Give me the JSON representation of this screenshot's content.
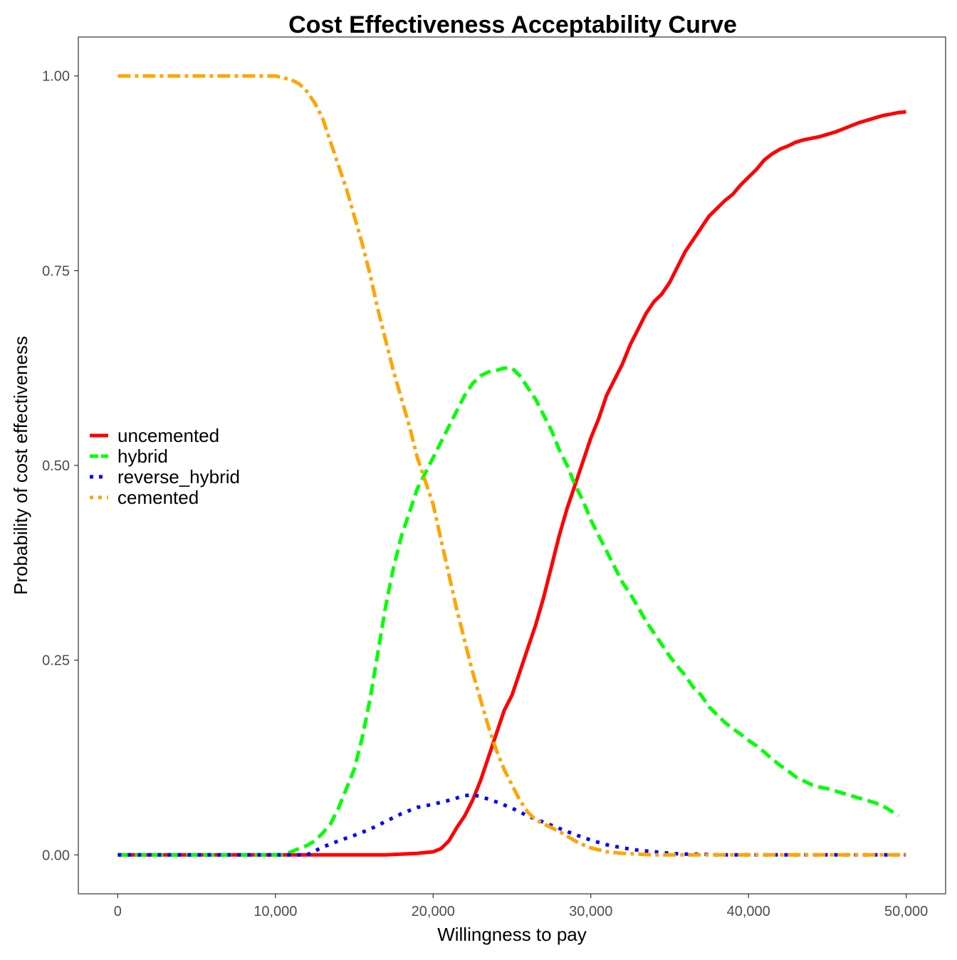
{
  "chart_data": {
    "type": "line",
    "title": "Cost Effectiveness Acceptability Curve",
    "xlabel": "Willingness to pay",
    "ylabel": "Probability of cost effectiveness",
    "xlim": [
      -2500,
      52500
    ],
    "ylim": [
      -0.05,
      1.05
    ],
    "x_ticks": [
      0,
      10000,
      20000,
      30000,
      40000,
      50000
    ],
    "x_tick_labels": [
      "0",
      "10,000",
      "20,000",
      "30,000",
      "40,000",
      "50,000"
    ],
    "y_ticks": [
      0,
      0.25,
      0.5,
      0.75,
      1.0
    ],
    "y_tick_labels": [
      "0.00",
      "0.25",
      "0.50",
      "0.75",
      "1.00"
    ],
    "grid": false,
    "legend_position": "left-middle",
    "series": [
      {
        "name": "uncemented",
        "color": "#ff0000",
        "line_style": "solid",
        "x": [
          0,
          10000,
          17000,
          19000,
          20000,
          20500,
          21000,
          21500,
          22000,
          22500,
          23000,
          23500,
          24000,
          24500,
          25000,
          25500,
          26000,
          26500,
          27000,
          27500,
          28000,
          28500,
          29000,
          29500,
          30000,
          30500,
          31000,
          31500,
          32000,
          32500,
          33000,
          33500,
          34000,
          34500,
          35000,
          35500,
          36000,
          36500,
          37000,
          37500,
          38000,
          38500,
          39000,
          39500,
          40000,
          40500,
          41000,
          41500,
          42000,
          42500,
          43000,
          43500,
          44000,
          44500,
          45000,
          45500,
          46000,
          46500,
          47000,
          47500,
          48000,
          48500,
          49000,
          49500,
          50000
        ],
        "y": [
          0,
          0,
          0,
          0.002,
          0.004,
          0.008,
          0.018,
          0.035,
          0.05,
          0.07,
          0.095,
          0.125,
          0.155,
          0.185,
          0.205,
          0.235,
          0.265,
          0.295,
          0.33,
          0.37,
          0.41,
          0.445,
          0.475,
          0.505,
          0.535,
          0.56,
          0.59,
          0.61,
          0.63,
          0.655,
          0.675,
          0.695,
          0.71,
          0.72,
          0.735,
          0.755,
          0.775,
          0.79,
          0.805,
          0.82,
          0.83,
          0.84,
          0.848,
          0.86,
          0.87,
          0.88,
          0.892,
          0.9,
          0.906,
          0.91,
          0.915,
          0.918,
          0.92,
          0.922,
          0.925,
          0.928,
          0.932,
          0.936,
          0.94,
          0.943,
          0.946,
          0.949,
          0.951,
          0.953,
          0.954
        ]
      },
      {
        "name": "hybrid",
        "color": "#00ff00",
        "line_style": "dashed",
        "x": [
          0,
          10500,
          11000,
          11500,
          12000,
          12500,
          13000,
          13500,
          14000,
          14500,
          15000,
          15500,
          16000,
          16500,
          17000,
          17500,
          18000,
          18500,
          19000,
          19500,
          20000,
          20500,
          21000,
          21500,
          22000,
          22500,
          23000,
          23500,
          24000,
          24500,
          25000,
          25500,
          26000,
          26500,
          27000,
          27500,
          28000,
          28500,
          29000,
          29500,
          30000,
          30500,
          31000,
          31500,
          32000,
          32500,
          33000,
          33500,
          34000,
          34500,
          35000,
          35500,
          36000,
          36500,
          37000,
          37500,
          38000,
          38500,
          39000,
          39500,
          40000,
          40500,
          41000,
          41500,
          42000,
          42500,
          43000,
          43500,
          44000,
          44500,
          45000,
          45500,
          46000,
          46500,
          47000,
          47500,
          48000,
          48500,
          49000,
          49500
        ],
        "y": [
          0,
          0,
          0.004,
          0.008,
          0.012,
          0.018,
          0.028,
          0.04,
          0.06,
          0.085,
          0.11,
          0.15,
          0.2,
          0.26,
          0.32,
          0.37,
          0.41,
          0.44,
          0.47,
          0.49,
          0.51,
          0.53,
          0.55,
          0.57,
          0.59,
          0.605,
          0.615,
          0.62,
          0.622,
          0.625,
          0.625,
          0.615,
          0.6,
          0.585,
          0.565,
          0.545,
          0.52,
          0.5,
          0.475,
          0.455,
          0.43,
          0.41,
          0.39,
          0.37,
          0.35,
          0.335,
          0.318,
          0.3,
          0.285,
          0.27,
          0.255,
          0.242,
          0.23,
          0.215,
          0.205,
          0.19,
          0.18,
          0.17,
          0.162,
          0.155,
          0.147,
          0.14,
          0.132,
          0.123,
          0.115,
          0.108,
          0.1,
          0.095,
          0.09,
          0.087,
          0.085,
          0.082,
          0.079,
          0.076,
          0.073,
          0.07,
          0.067,
          0.063,
          0.057,
          0.05
        ]
      },
      {
        "name": "reverse_hybrid",
        "color": "#0000ff",
        "line_style": "dotted",
        "x": [
          0,
          12000,
          12500,
          13000,
          14000,
          15000,
          16000,
          17000,
          18000,
          19000,
          20000,
          21000,
          22000,
          22500,
          23000,
          24000,
          25000,
          26000,
          27000,
          28000,
          29000,
          30000,
          31000,
          32000,
          33000,
          34000,
          35000,
          36000,
          37000,
          38000,
          40000,
          50000
        ],
        "y": [
          0,
          0,
          0.005,
          0.01,
          0.018,
          0.025,
          0.033,
          0.043,
          0.053,
          0.061,
          0.065,
          0.07,
          0.076,
          0.077,
          0.075,
          0.068,
          0.06,
          0.05,
          0.042,
          0.034,
          0.026,
          0.019,
          0.013,
          0.009,
          0.006,
          0.004,
          0.002,
          0.001,
          0.001,
          0,
          0,
          0
        ]
      },
      {
        "name": "cemented",
        "color": "#ffa500",
        "line_style": "dotdash",
        "x": [
          0,
          10000,
          11000,
          11500,
          12000,
          12500,
          13000,
          13500,
          14000,
          14500,
          15000,
          15500,
          16000,
          16500,
          17000,
          17500,
          18000,
          18500,
          19000,
          19500,
          20000,
          20500,
          21000,
          21500,
          22000,
          22500,
          23000,
          23500,
          24000,
          24500,
          25000,
          25500,
          26000,
          26500,
          27000,
          27500,
          28000,
          28500,
          29000,
          29500,
          30000,
          31000,
          32000,
          33000,
          34000,
          36000,
          50000
        ],
        "y": [
          1.0,
          1.0,
          0.995,
          0.99,
          0.98,
          0.965,
          0.945,
          0.915,
          0.885,
          0.855,
          0.82,
          0.785,
          0.745,
          0.7,
          0.66,
          0.62,
          0.585,
          0.55,
          0.51,
          0.48,
          0.45,
          0.405,
          0.36,
          0.315,
          0.275,
          0.235,
          0.2,
          0.165,
          0.135,
          0.11,
          0.09,
          0.07,
          0.055,
          0.045,
          0.04,
          0.035,
          0.03,
          0.024,
          0.018,
          0.013,
          0.009,
          0.004,
          0.002,
          0.001,
          0,
          0,
          0
        ]
      }
    ]
  }
}
